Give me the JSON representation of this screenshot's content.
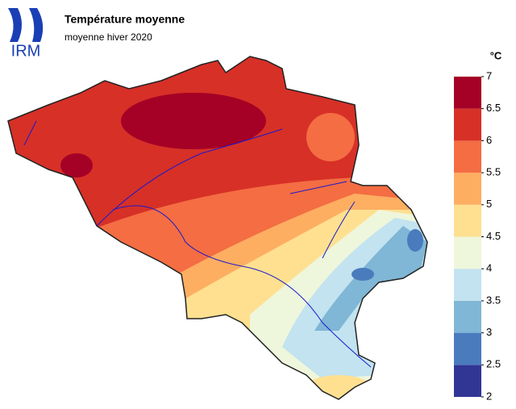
{
  "header": {
    "logo": "IRM",
    "title": "Température moyenne",
    "subtitle": "moyenne hiver 2020"
  },
  "legend": {
    "unit": "°C",
    "ticks": [
      2,
      2.5,
      3,
      3.5,
      4,
      4.5,
      5,
      5.5,
      6,
      6.5,
      7
    ],
    "colors": [
      "#313695",
      "#4a7bbd",
      "#80b6d6",
      "#c2e3ef",
      "#eef6dc",
      "#fee090",
      "#fdae61",
      "#f46d43",
      "#d73027",
      "#a50026"
    ]
  }
}
